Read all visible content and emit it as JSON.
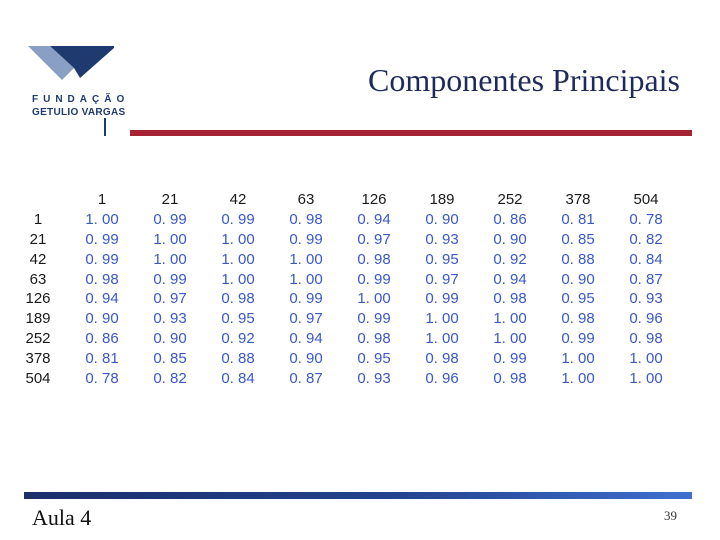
{
  "logo": {
    "line1": "FUNDAÇÃO",
    "line2": "GETULIO VARGAS",
    "colors": {
      "dark": "#1f3a6e",
      "light": "#8a9fc4"
    }
  },
  "slide": {
    "title": "Componentes Principais",
    "footer_left": "Aula 4",
    "page_number": "39"
  },
  "table": {
    "columns": [
      "1",
      "21",
      "42",
      "63",
      "126",
      "189",
      "252",
      "378",
      "504"
    ],
    "rows": [
      {
        "label": "1",
        "values": [
          "1. 00",
          "0. 99",
          "0. 99",
          "0. 98",
          "0. 94",
          "0. 90",
          "0. 86",
          "0. 81",
          "0. 78"
        ]
      },
      {
        "label": "21",
        "values": [
          "0. 99",
          "1. 00",
          "1. 00",
          "0. 99",
          "0. 97",
          "0. 93",
          "0. 90",
          "0. 85",
          "0. 82"
        ]
      },
      {
        "label": "42",
        "values": [
          "0. 99",
          "1. 00",
          "1. 00",
          "1. 00",
          "0. 98",
          "0. 95",
          "0. 92",
          "0. 88",
          "0. 84"
        ]
      },
      {
        "label": "63",
        "values": [
          "0. 98",
          "0. 99",
          "1. 00",
          "1. 00",
          "0. 99",
          "0. 97",
          "0. 94",
          "0. 90",
          "0. 87"
        ]
      },
      {
        "label": "126",
        "values": [
          "0. 94",
          "0. 97",
          "0. 98",
          "0. 99",
          "1. 00",
          "0. 99",
          "0. 98",
          "0. 95",
          "0. 93"
        ]
      },
      {
        "label": "189",
        "values": [
          "0. 90",
          "0. 93",
          "0. 95",
          "0. 97",
          "0. 99",
          "1. 00",
          "1. 00",
          "0. 98",
          "0. 96"
        ]
      },
      {
        "label": "252",
        "values": [
          "0. 86",
          "0. 90",
          "0. 92",
          "0. 94",
          "0. 98",
          "1. 00",
          "1. 00",
          "0. 99",
          "0. 98"
        ]
      },
      {
        "label": "378",
        "values": [
          "0. 81",
          "0. 85",
          "0. 88",
          "0. 90",
          "0. 95",
          "0. 98",
          "0. 99",
          "1. 00",
          "1. 00"
        ]
      },
      {
        "label": "504",
        "values": [
          "0. 78",
          "0. 82",
          "0. 84",
          "0. 87",
          "0. 93",
          "0. 96",
          "0. 98",
          "1. 00",
          "1. 00"
        ]
      }
    ]
  },
  "colors": {
    "title": "#1f2a5c",
    "title_rule": "#a52333",
    "cell_text": "#3a58c8",
    "footer_bar": "#22428e"
  }
}
